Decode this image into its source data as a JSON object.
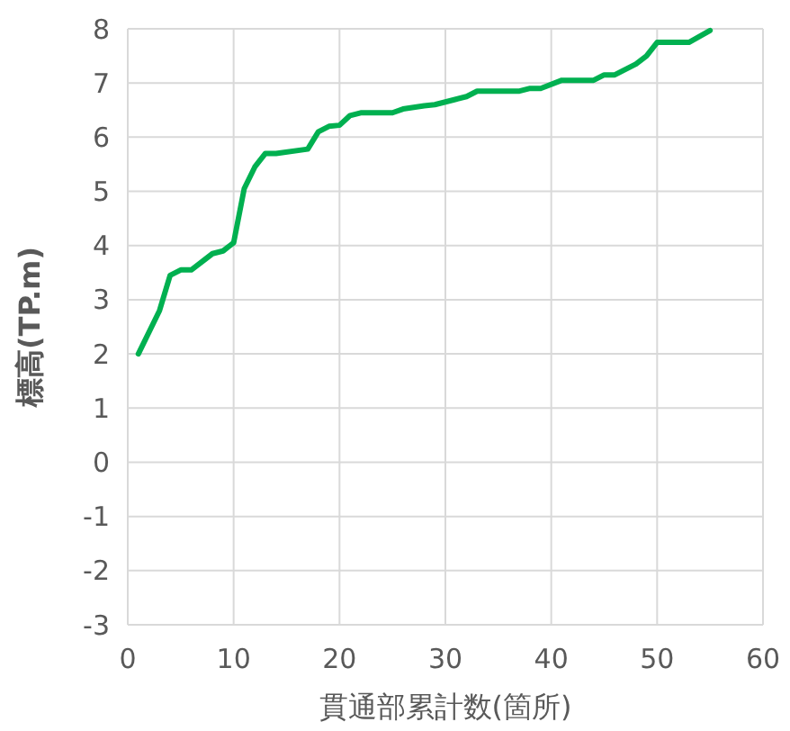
{
  "chart_data": {
    "type": "line",
    "xlabel": "貫通部累計数(箇所)",
    "ylabel": "標高(TP.m)",
    "xlim": [
      0,
      60
    ],
    "xticks": [
      0,
      10,
      20,
      30,
      40,
      50,
      60
    ],
    "ylim": [
      -3,
      8
    ],
    "yticks": [
      -3,
      -2,
      -1,
      0,
      1,
      2,
      3,
      4,
      5,
      6,
      7,
      8
    ],
    "grid": true,
    "series": [
      {
        "color": "#00b050",
        "x": [
          1,
          3,
          4,
          5,
          6,
          8,
          9,
          10,
          11,
          12,
          13,
          14,
          17,
          18,
          19,
          20,
          21,
          22,
          25,
          26,
          28,
          29,
          31,
          32,
          33,
          37,
          38,
          39,
          41,
          44,
          45,
          46,
          48,
          49,
          50,
          53,
          55
        ],
        "values": [
          2,
          2.8,
          3.45,
          3.55,
          3.55,
          3.85,
          3.9,
          4.05,
          5.05,
          5.45,
          5.7,
          5.7,
          5.78,
          6.1,
          6.2,
          6.22,
          6.4,
          6.45,
          6.45,
          6.52,
          6.58,
          6.6,
          6.7,
          6.75,
          6.85,
          6.85,
          6.9,
          6.9,
          7.05,
          7.05,
          7.15,
          7.15,
          7.35,
          7.5,
          7.75,
          7.75,
          7.97
        ]
      }
    ]
  }
}
